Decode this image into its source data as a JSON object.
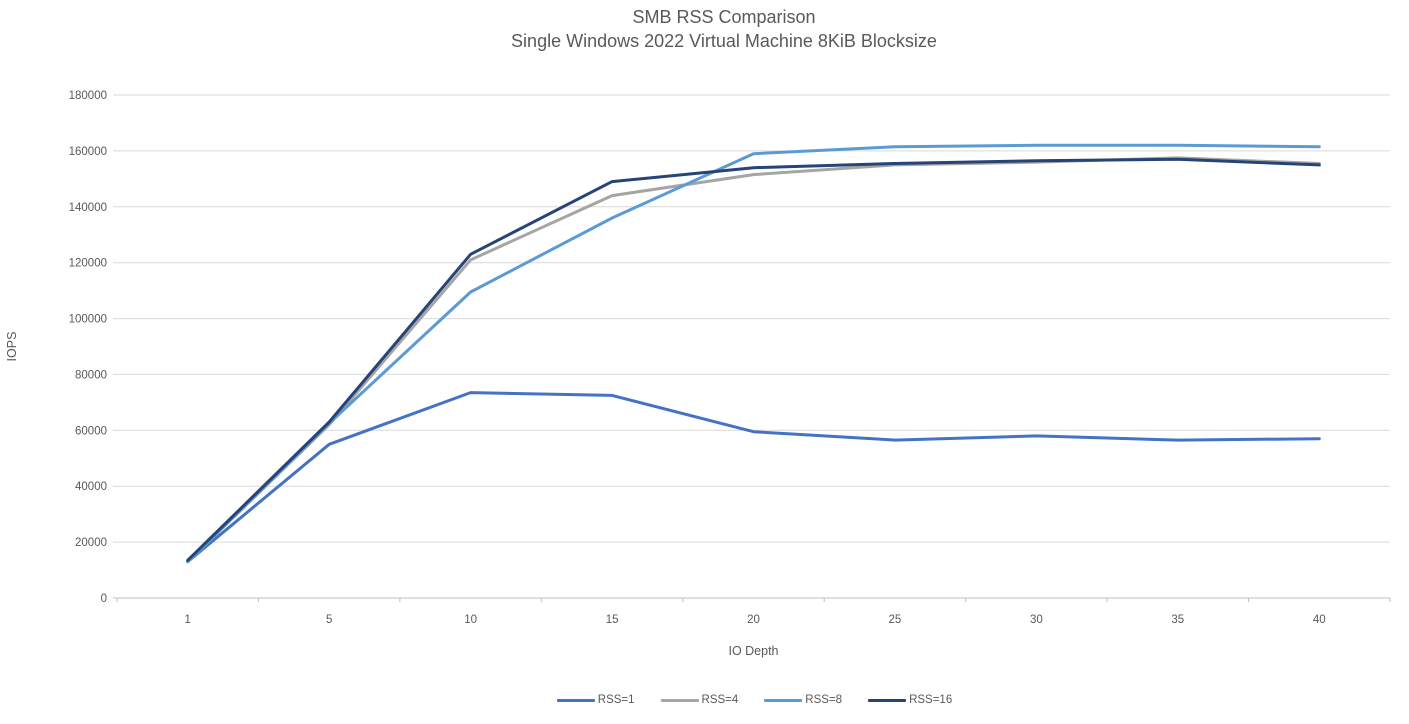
{
  "page": {
    "background": "#FFFFFF"
  },
  "chart_data": {
    "type": "line",
    "title": "SMB RSS Comparison",
    "subtitle": "Single Windows 2022 Virtual Machine 8KiB Blocksize",
    "xlabel": "IO Depth",
    "ylabel": "IOPS",
    "categories": [
      "1",
      "5",
      "10",
      "15",
      "20",
      "25",
      "30",
      "35",
      "40"
    ],
    "ylim": [
      0,
      180000
    ],
    "ytick_step": 20000,
    "ytick_labels": [
      "0",
      "20000",
      "40000",
      "60000",
      "80000",
      "100000",
      "120000",
      "140000",
      "160000",
      "180000"
    ],
    "grid": true,
    "legend_position": "bottom",
    "colors": {
      "text": "#595959",
      "gridline": "#D9D9D9",
      "axis_line": "#BFBFBF"
    },
    "series": [
      {
        "name": "RSS=1",
        "color": "#4472C4",
        "values": [
          13000,
          55000,
          73500,
          72500,
          59500,
          56500,
          58000,
          56500,
          57000
        ]
      },
      {
        "name": "RSS=4",
        "color": "#A5A5A5",
        "values": [
          13000,
          62000,
          121000,
          144000,
          151500,
          155000,
          156000,
          157500,
          155500
        ]
      },
      {
        "name": "RSS=8",
        "color": "#5B9BD5",
        "values": [
          13000,
          62500,
          109500,
          136000,
          159000,
          161500,
          162000,
          162000,
          161500
        ]
      },
      {
        "name": "RSS=16",
        "color": "#264478",
        "values": [
          13500,
          63000,
          123000,
          149000,
          154000,
          155500,
          156500,
          157000,
          155000
        ]
      }
    ]
  }
}
